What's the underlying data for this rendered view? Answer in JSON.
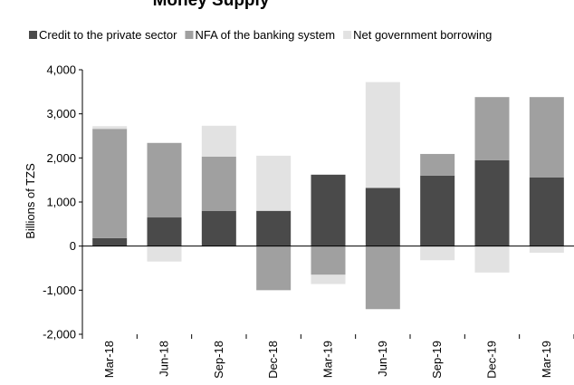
{
  "chart_data": {
    "type": "bar",
    "stacked": true,
    "title": "Money Supply",
    "ylabel": "Billions of TZS",
    "xlabel": "",
    "ylim": [
      -2000,
      4000
    ],
    "yticks": [
      -2000,
      -1000,
      0,
      1000,
      2000,
      3000,
      4000
    ],
    "ytick_labels": [
      "-2,000",
      "-1,000",
      "0",
      "1,000",
      "2,000",
      "3,000",
      "4,000"
    ],
    "grid": false,
    "legend_position": "top",
    "categories": [
      "Mar-18",
      "Jun-18",
      "Sep-18",
      "Dec-18",
      "Mar-19",
      "Jun-19",
      "Sep-19",
      "Dec-19",
      "Mar-19"
    ],
    "series": [
      {
        "name": "Credit to the private sector",
        "color": "#4a4a4a",
        "values": [
          180,
          650,
          800,
          800,
          1620,
          1320,
          1600,
          1950,
          1560
        ]
      },
      {
        "name": "NFA of the banking system",
        "color": "#a0a0a0",
        "values": [
          2480,
          1690,
          1230,
          -1000,
          -650,
          -1430,
          490,
          1430,
          1820
        ]
      },
      {
        "name": "Net government borrowing",
        "color": "#e2e2e2",
        "values": [
          60,
          -350,
          700,
          1250,
          -210,
          2400,
          -320,
          -600,
          -150
        ]
      }
    ]
  }
}
